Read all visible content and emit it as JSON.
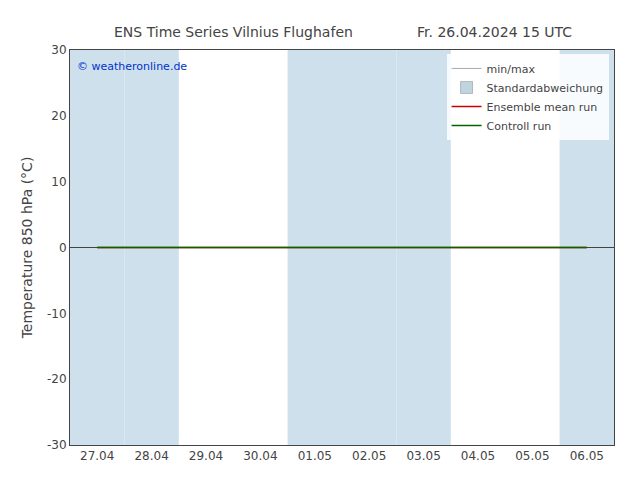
{
  "chart_data": {
    "type": "line",
    "title": "ENS Time Series Vilnius Flughafen",
    "subtitle": "Fr. 26.04.2024 15 UTC",
    "ylabel": "Temperature 850 hPa (°C)",
    "categories": [
      "27.04",
      "28.04",
      "29.04",
      "30.04",
      "01.05",
      "02.05",
      "03.05",
      "04.05",
      "05.05",
      "06.05"
    ],
    "series": [
      {
        "name": "min/max",
        "color": "#aaaaaa",
        "type": "errorbar",
        "values": [
          null,
          null,
          null,
          null,
          null,
          null,
          null,
          null,
          null,
          null
        ]
      },
      {
        "name": "Standardabweichung",
        "color": "#c0d4e0",
        "type": "box",
        "values": [
          null,
          null,
          null,
          null,
          null,
          null,
          null,
          null,
          null,
          null
        ]
      },
      {
        "name": "Ensemble mean run",
        "color": "#cc0000",
        "type": "line",
        "values": [
          0,
          0,
          0,
          0,
          0,
          0,
          0,
          0,
          0,
          0
        ]
      },
      {
        "name": "Controll run",
        "color": "#006600",
        "type": "line",
        "values": [
          0,
          0,
          0,
          0,
          0,
          0,
          0,
          0,
          0,
          0
        ]
      }
    ],
    "bands": {
      "categories": [
        "27.04",
        "28.04",
        "01.05",
        "02.05",
        "03.05",
        "06.05"
      ],
      "color": "#cfe0ed"
    },
    "annotations": [
      {
        "text": "© weatheronline.de",
        "color": "#0033cc"
      }
    ],
    "ylim": [
      -30,
      30
    ],
    "yticks": [
      -30,
      -20,
      -10,
      0,
      10,
      20,
      30
    ],
    "grid": false,
    "legend": "upper right"
  }
}
